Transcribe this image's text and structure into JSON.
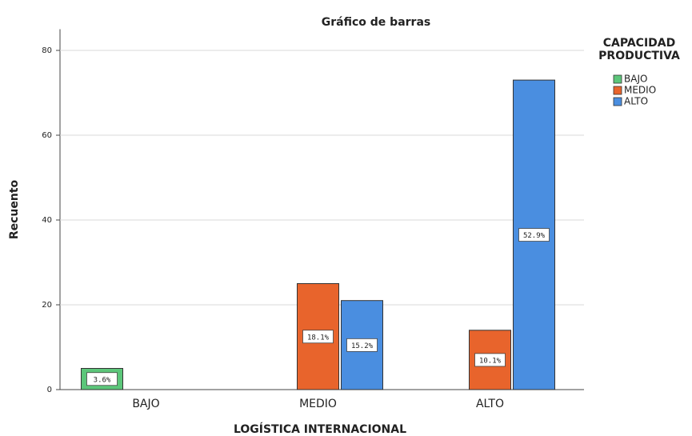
{
  "chart_data": {
    "type": "bar",
    "title": "Gráfico de barras",
    "x_label": "LOGÍSTICA INTERNACIONAL",
    "y_label": "Recuento",
    "legend_title": "CAPACIDAD PRODUCTIVA",
    "categories": [
      "BAJO",
      "MEDIO",
      "ALTO"
    ],
    "series": [
      {
        "name": "BAJO",
        "color": "#5cc67a",
        "values": [
          5,
          null,
          null
        ],
        "percent_labels": [
          "3.6%",
          null,
          null
        ]
      },
      {
        "name": "MEDIO",
        "color": "#e8642c",
        "values": [
          null,
          25,
          14
        ],
        "percent_labels": [
          null,
          "18.1%",
          "10.1%"
        ]
      },
      {
        "name": "ALTO",
        "color": "#4a8ee0",
        "values": [
          null,
          21,
          73
        ],
        "percent_labels": [
          null,
          "15.2%",
          "52.9%"
        ]
      }
    ],
    "ylim": [
      0,
      85
    ],
    "yticks": [
      0,
      20,
      40,
      60,
      80
    ],
    "grid": true,
    "legend": "right"
  }
}
